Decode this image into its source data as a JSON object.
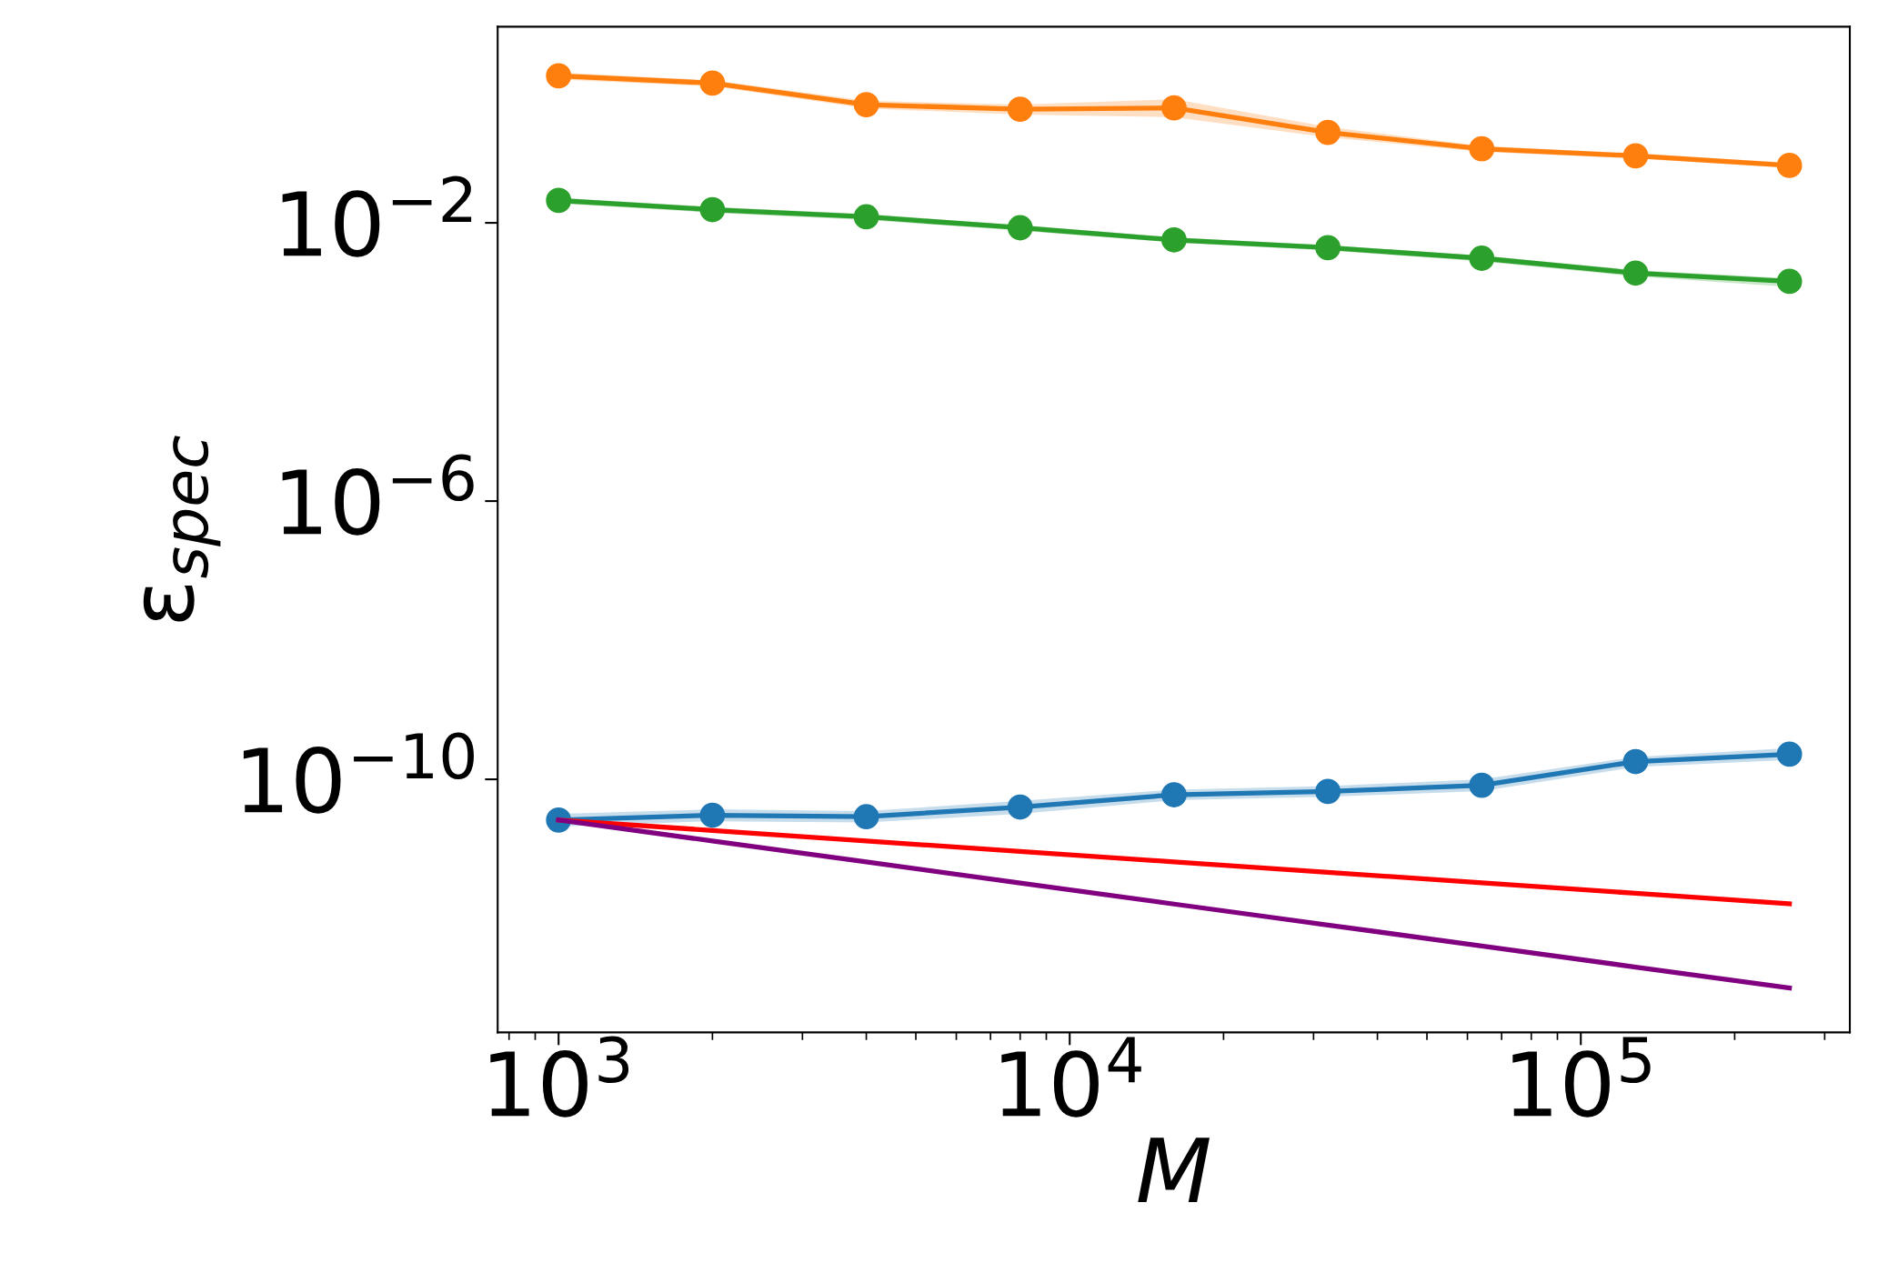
{
  "chart_data": {
    "type": "line",
    "xlabel": "M",
    "ylabel": "ε$_{spec}$",
    "log": "xy",
    "grid": false,
    "legend": false,
    "x": [
      1000,
      2000,
      4000,
      8000,
      16000,
      32000,
      64000,
      128000,
      256000
    ],
    "xlim": [
      760,
      336000
    ],
    "ylim": [
      2.3e-14,
      6.6
    ],
    "xticks": [
      {
        "value": 1000,
        "label": "10$^{3}$"
      },
      {
        "value": 10000,
        "label": "10$^{4}$"
      },
      {
        "value": 100000,
        "label": "10$^{5}$"
      }
    ],
    "yticks": [
      {
        "value": 0.01,
        "label": "10$^{−2}$"
      },
      {
        "value": 1e-06,
        "label": "10$^{−6}$"
      },
      {
        "value": 1e-10,
        "label": "10$^{−10}$"
      }
    ],
    "series": [
      {
        "color": "#ff7f0e",
        "marker": "circle",
        "values": [
          1.3,
          1.02,
          0.5,
          0.43,
          0.45,
          0.2,
          0.116,
          0.092,
          0.067
        ],
        "lower": [
          1.15,
          0.92,
          0.44,
          0.36,
          0.33,
          0.17,
          0.105,
          0.084,
          0.062
        ],
        "upper": [
          1.45,
          1.12,
          0.57,
          0.5,
          0.6,
          0.24,
          0.128,
          0.1,
          0.073
        ]
      },
      {
        "color": "#2ca02c",
        "marker": "circle",
        "values": [
          0.021,
          0.0155,
          0.0122,
          0.0085,
          0.0057,
          0.0044,
          0.0031,
          0.0019,
          0.00144
        ],
        "lower": [
          0.019,
          0.014,
          0.011,
          0.0077,
          0.0052,
          0.004,
          0.0028,
          0.0017,
          0.0012
        ],
        "upper": [
          0.023,
          0.017,
          0.0134,
          0.0093,
          0.0062,
          0.0048,
          0.0034,
          0.0021,
          0.0016
        ]
      },
      {
        "color": "#1f77b4",
        "marker": "circle",
        "values": [
          2.6e-11,
          3.05e-11,
          2.9e-11,
          4e-11,
          6e-11,
          6.7e-11,
          8.2e-11,
          1.8e-10,
          2.3e-10
        ],
        "lower": [
          2.1e-11,
          2.5e-11,
          2.4e-11,
          3.2e-11,
          5e-11,
          5.6e-11,
          6.8e-11,
          1.5e-10,
          1.9e-10
        ],
        "upper": [
          3.2e-11,
          3.7e-11,
          3.5e-11,
          4.9e-11,
          7.1e-11,
          8e-11,
          1e-10,
          2.1e-10,
          2.8e-10
        ]
      },
      {
        "color": "#ff0000",
        "marker": "none",
        "values": [
          2.6e-11,
          1.84e-11,
          1.3e-11,
          9.2e-12,
          6.5e-12,
          4.6e-12,
          3.26e-12,
          2.3e-12,
          1.63e-12
        ]
      },
      {
        "color": "#800080",
        "marker": "none",
        "values": [
          2.6e-11,
          1.3e-11,
          6.5e-12,
          3.23e-12,
          1.61e-12,
          8.05e-13,
          4.02e-13,
          2e-13,
          1e-13
        ]
      }
    ]
  }
}
